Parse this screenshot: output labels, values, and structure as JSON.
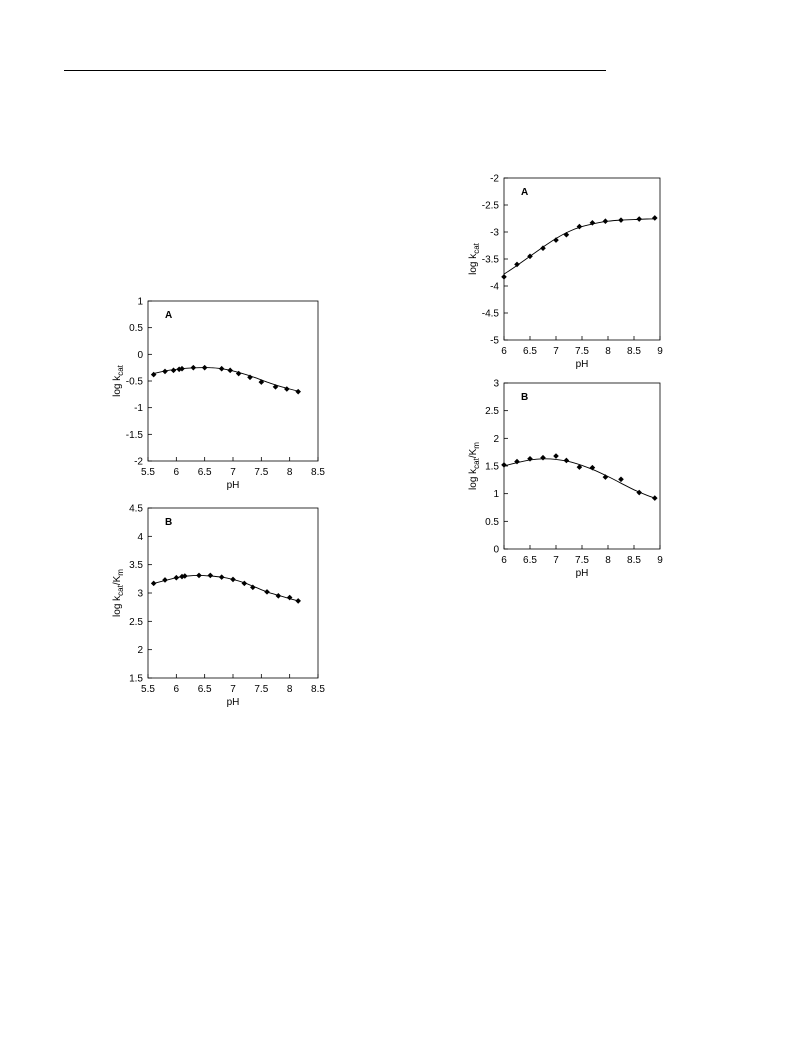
{
  "chart_data": [
    {
      "type": "scatter",
      "panel_label": "A",
      "xlabel": "pH",
      "ylabel_main": "log k",
      "ylabel_sub": "cat",
      "xlim": [
        5.5,
        8.5
      ],
      "ylim": [
        -2,
        1
      ],
      "xticks": [
        5.5,
        6,
        6.5,
        7,
        7.5,
        8,
        8.5
      ],
      "yticks": [
        -2,
        -1.5,
        -1,
        -0.5,
        0,
        0.5,
        1
      ],
      "xtick_labels": [
        "5.5",
        "6",
        "6.5",
        "7",
        "7.5",
        "8",
        "8.5"
      ],
      "ytick_labels": [
        "-2",
        "-1.5",
        "-1",
        "-0.5",
        "0",
        "0.5",
        "1"
      ],
      "points": {
        "x": [
          5.6,
          5.8,
          5.95,
          6.05,
          6.1,
          6.3,
          6.5,
          6.8,
          6.95,
          7.1,
          7.3,
          7.5,
          7.75,
          7.95,
          8.15
        ],
        "y": [
          -0.38,
          -0.32,
          -0.3,
          -0.28,
          -0.27,
          -0.25,
          -0.25,
          -0.27,
          -0.3,
          -0.36,
          -0.43,
          -0.52,
          -0.61,
          -0.65,
          -0.7
        ]
      },
      "fit": {
        "x": [
          5.6,
          5.8,
          6.0,
          6.2,
          6.4,
          6.6,
          6.8,
          7.0,
          7.2,
          7.4,
          7.6,
          7.8,
          8.0,
          8.15
        ],
        "y": [
          -0.36,
          -0.31,
          -0.28,
          -0.26,
          -0.25,
          -0.25,
          -0.27,
          -0.31,
          -0.37,
          -0.44,
          -0.52,
          -0.59,
          -0.65,
          -0.69
        ]
      },
      "grid": false
    },
    {
      "type": "scatter",
      "panel_label": "B",
      "xlabel": "pH",
      "ylabel_main": "log k",
      "ylabel_sub": "cat",
      "ylabel_mid": "/K",
      "ylabel_sub2": "m",
      "xlim": [
        5.5,
        8.5
      ],
      "ylim": [
        1.5,
        4.5
      ],
      "xticks": [
        5.5,
        6,
        6.5,
        7,
        7.5,
        8,
        8.5
      ],
      "yticks": [
        1.5,
        2,
        2.5,
        3,
        3.5,
        4,
        4.5
      ],
      "xtick_labels": [
        "5.5",
        "6",
        "6.5",
        "7",
        "7.5",
        "8",
        "8.5"
      ],
      "ytick_labels": [
        "1.5",
        "2",
        "2.5",
        "3",
        "3.5",
        "4",
        "4.5"
      ],
      "points": {
        "x": [
          5.6,
          5.8,
          6.0,
          6.1,
          6.15,
          6.4,
          6.6,
          6.8,
          7.0,
          7.2,
          7.35,
          7.6,
          7.8,
          8.0,
          8.15
        ],
        "y": [
          3.17,
          3.23,
          3.27,
          3.29,
          3.3,
          3.31,
          3.31,
          3.28,
          3.24,
          3.17,
          3.1,
          3.02,
          2.95,
          2.92,
          2.86
        ]
      },
      "fit": {
        "x": [
          5.6,
          5.8,
          6.0,
          6.2,
          6.4,
          6.6,
          6.8,
          7.0,
          7.2,
          7.4,
          7.6,
          7.8,
          8.0,
          8.15
        ],
        "y": [
          3.17,
          3.22,
          3.27,
          3.3,
          3.31,
          3.3,
          3.28,
          3.24,
          3.18,
          3.1,
          3.02,
          2.96,
          2.9,
          2.86
        ]
      },
      "grid": false
    },
    {
      "type": "scatter",
      "panel_label": "A",
      "xlabel": "pH",
      "ylabel_main": "log k",
      "ylabel_sub": "cat",
      "xlim": [
        6,
        9
      ],
      "ylim": [
        -5,
        -2
      ],
      "xticks": [
        6,
        6.5,
        7,
        7.5,
        8,
        8.5,
        9
      ],
      "yticks": [
        -5,
        -4.5,
        -4,
        -3.5,
        -3,
        -2.5,
        -2
      ],
      "xtick_labels": [
        "6",
        "6.5",
        "7",
        "7.5",
        "8",
        "8.5",
        "9"
      ],
      "ytick_labels": [
        "-5",
        "-4.5",
        "-4",
        "-3.5",
        "-3",
        "-2.5",
        "-2"
      ],
      "points": {
        "x": [
          6.0,
          6.25,
          6.5,
          6.75,
          7.0,
          7.2,
          7.45,
          7.7,
          7.95,
          8.25,
          8.6,
          8.9
        ],
        "y": [
          -3.83,
          -3.6,
          -3.45,
          -3.3,
          -3.15,
          -3.05,
          -2.9,
          -2.83,
          -2.8,
          -2.78,
          -2.76,
          -2.74
        ]
      },
      "fit": {
        "x": [
          6.0,
          6.25,
          6.5,
          6.75,
          7.0,
          7.25,
          7.5,
          7.75,
          8.0,
          8.25,
          8.5,
          8.75,
          8.9
        ],
        "y": [
          -3.78,
          -3.62,
          -3.45,
          -3.28,
          -3.12,
          -2.99,
          -2.9,
          -2.84,
          -2.8,
          -2.78,
          -2.77,
          -2.76,
          -2.76
        ]
      },
      "grid": false
    },
    {
      "type": "scatter",
      "panel_label": "B",
      "xlabel": "pH",
      "ylabel_main": "log k",
      "ylabel_sub": "cat",
      "ylabel_mid": "/K",
      "ylabel_sub2": "m",
      "xlim": [
        6,
        9
      ],
      "ylim": [
        0,
        3
      ],
      "xticks": [
        6,
        6.5,
        7,
        7.5,
        8,
        8.5,
        9
      ],
      "yticks": [
        0,
        0.5,
        1,
        1.5,
        2,
        2.5,
        3
      ],
      "xtick_labels": [
        "6",
        "6.5",
        "7",
        "7.5",
        "8",
        "8.5",
        "9"
      ],
      "ytick_labels": [
        "0",
        "0.5",
        "1",
        "1.5",
        "2",
        "2.5",
        "3"
      ],
      "points": {
        "x": [
          6.0,
          6.25,
          6.5,
          6.75,
          7.0,
          7.2,
          7.45,
          7.7,
          7.95,
          8.25,
          8.6,
          8.9
        ],
        "y": [
          1.52,
          1.58,
          1.63,
          1.65,
          1.68,
          1.6,
          1.48,
          1.47,
          1.3,
          1.26,
          1.02,
          0.92
        ]
      },
      "fit": {
        "x": [
          6.0,
          6.25,
          6.5,
          6.75,
          7.0,
          7.25,
          7.5,
          7.75,
          8.0,
          8.25,
          8.5,
          8.75,
          8.9
        ],
        "y": [
          1.5,
          1.56,
          1.61,
          1.63,
          1.62,
          1.58,
          1.51,
          1.42,
          1.31,
          1.19,
          1.07,
          0.97,
          0.92
        ]
      },
      "grid": false
    }
  ]
}
